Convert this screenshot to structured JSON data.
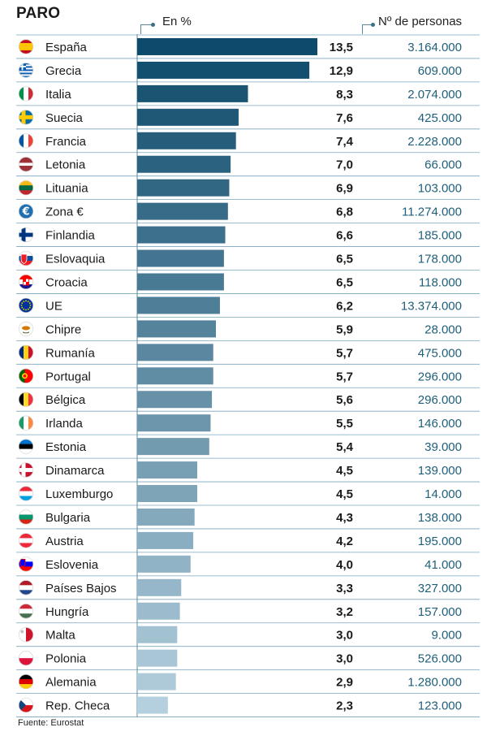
{
  "header": {
    "title": "PARO",
    "col_pct": "En %",
    "col_num": "Nº de personas"
  },
  "source": "Fuente: Eurostat",
  "chart_data": {
    "type": "bar",
    "orientation": "horizontal",
    "title": "PARO",
    "xlabel": "En %",
    "xlim": [
      0,
      13.5
    ],
    "categories": [
      "España",
      "Grecia",
      "Italia",
      "Suecia",
      "Francia",
      "Letonia",
      "Lituania",
      "Zona €",
      "Finlandia",
      "Eslovaquia",
      "Croacia",
      "UE",
      "Chipre",
      "Rumanía",
      "Portugal",
      "Bélgica",
      "Irlanda",
      "Estonia",
      "Dinamarca",
      "Luxemburgo",
      "Bulgaria",
      "Austria",
      "Eslovenia",
      "Países Bajos",
      "Hungría",
      "Malta",
      "Polonia",
      "Alemania",
      "Rep. Checa"
    ],
    "values": [
      13.5,
      12.9,
      8.3,
      7.6,
      7.4,
      7.0,
      6.9,
      6.8,
      6.6,
      6.5,
      6.5,
      6.2,
      5.9,
      5.7,
      5.7,
      5.6,
      5.5,
      5.4,
      4.5,
      4.5,
      4.3,
      4.2,
      4.0,
      3.3,
      3.2,
      3.0,
      3.0,
      2.9,
      2.3
    ],
    "value_labels": [
      "13,5",
      "12,9",
      "8,3",
      "7,6",
      "7,4",
      "7,0",
      "6,9",
      "6,8",
      "6,6",
      "6,5",
      "6,5",
      "6,2",
      "5,9",
      "5,7",
      "5,7",
      "5,6",
      "5,5",
      "5,4",
      "4,5",
      "4,5",
      "4,3",
      "4,2",
      "4,0",
      "3,3",
      "3,2",
      "3,0",
      "3,0",
      "2,9",
      "2,3"
    ],
    "persons": [
      "3.164.000",
      "609.000",
      "2.074.000",
      "425.000",
      "2.228.000",
      "66.000",
      "103.000",
      "11.274.000",
      "185.000",
      "178.000",
      "118.000",
      "13.374.000",
      "28.000",
      "475.000",
      "296.000",
      "296.000",
      "146.000",
      "39.000",
      "139.000",
      "14.000",
      "138.000",
      "195.000",
      "41.000",
      "327.000",
      "157.000",
      "9.000",
      "526.000",
      "1.280.000",
      "123.000"
    ],
    "flags": [
      "flag-spain",
      "flag-greece",
      "flag-italy",
      "flag-sweden",
      "flag-france",
      "flag-latvia",
      "flag-lithuania",
      "flag-euro",
      "flag-finland",
      "flag-slovakia",
      "flag-croatia",
      "flag-eu",
      "flag-cyprus",
      "flag-romania",
      "flag-portugal",
      "flag-belgium",
      "flag-ireland",
      "flag-estonia",
      "flag-denmark",
      "flag-luxembourg",
      "flag-bulgaria",
      "flag-austria",
      "flag-slovenia",
      "flag-netherlands",
      "flag-hungary",
      "flag-malta",
      "flag-poland",
      "flag-germany",
      "flag-czechia"
    ],
    "colors": {
      "bar_dark": "#0d4a6b",
      "bar_light": "#b4cfdd",
      "number_text": "#1f5f7a"
    }
  }
}
